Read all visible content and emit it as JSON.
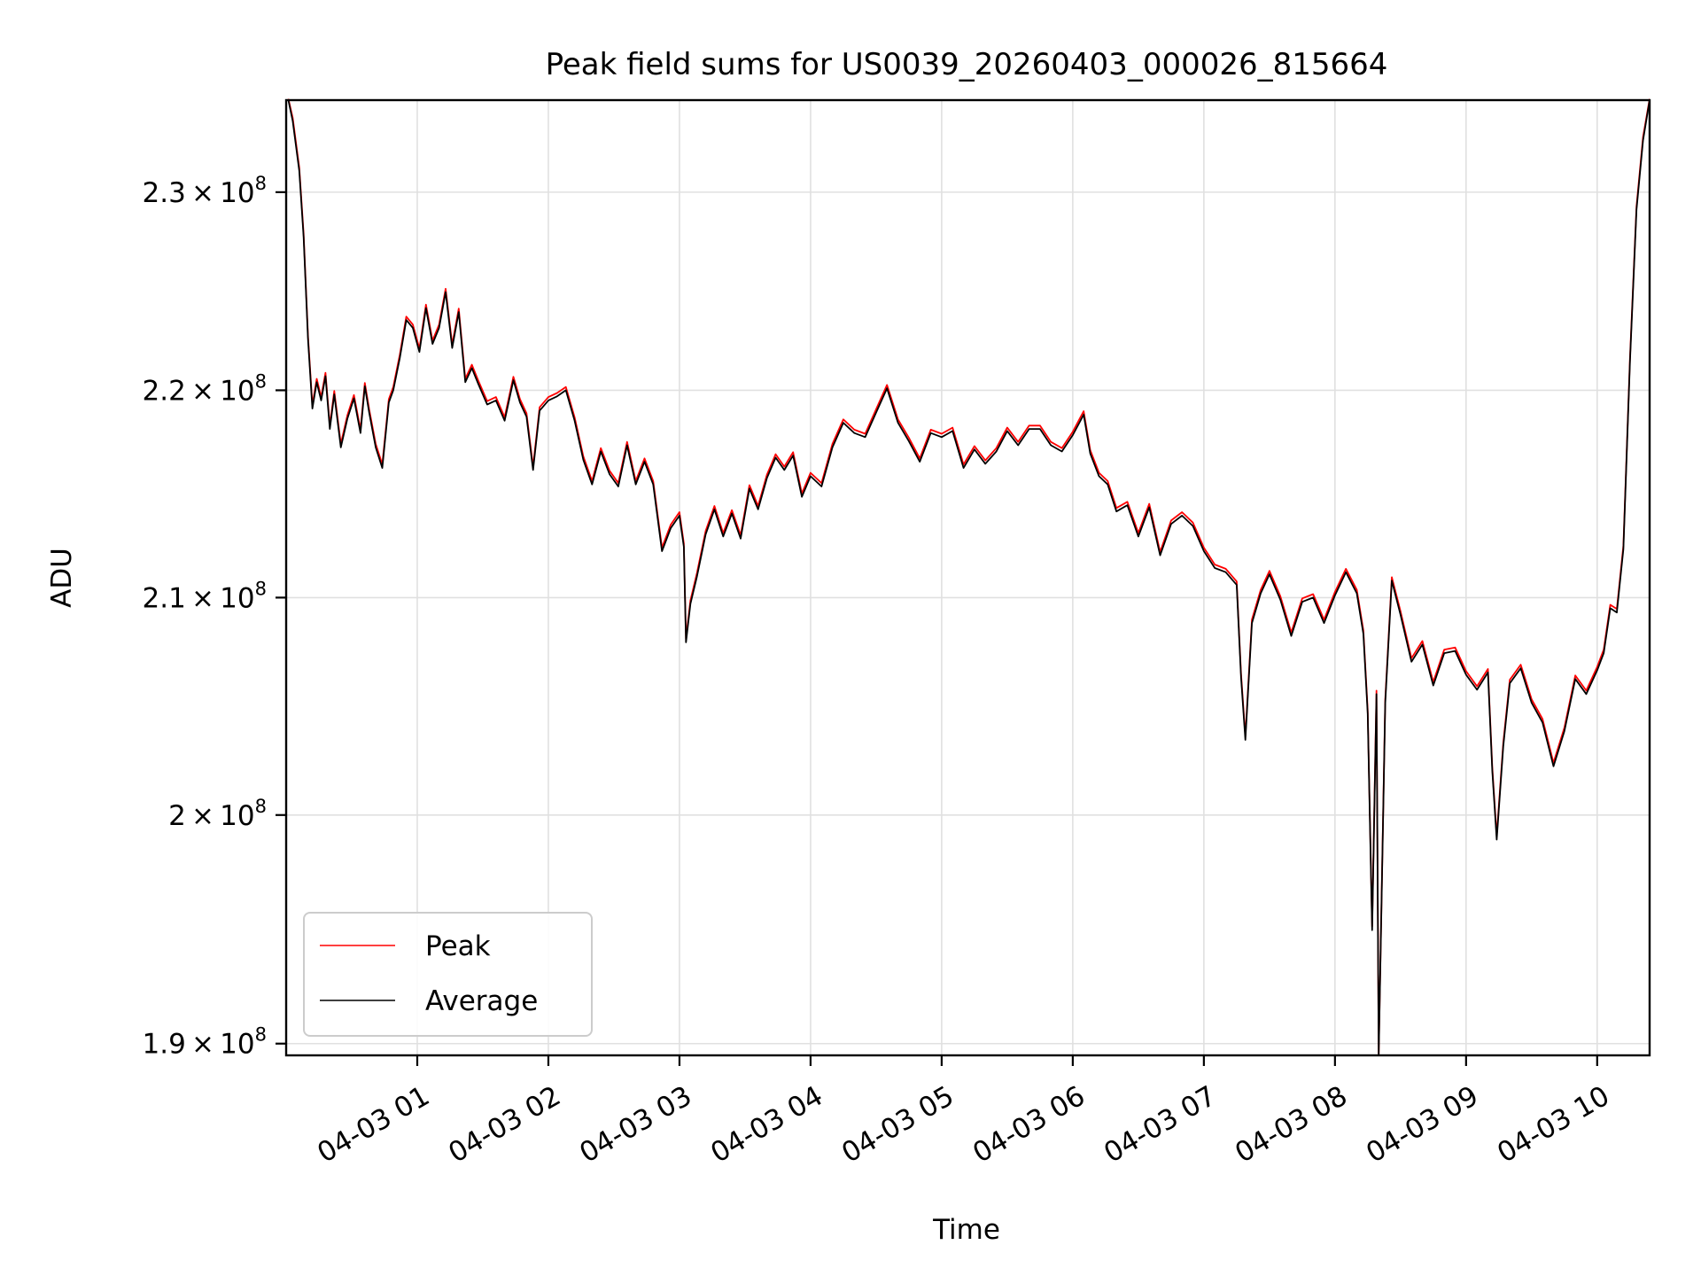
{
  "chart_data": {
    "type": "line",
    "title": "Peak field sums for US0039_20260403_000026_815664",
    "xlabel": "Time",
    "ylabel": "ADU",
    "y_scale": "log",
    "grid": true,
    "legend": {
      "placement": "lower left",
      "entries": [
        "Peak",
        "Average"
      ]
    },
    "xlim": [
      "2026-04-03 00:00",
      "2026-04-03 10:24"
    ],
    "ylim": [
      189500000,
      234800000
    ],
    "x_ticks": [
      "2026-04-03 01:00",
      "2026-04-03 02:00",
      "2026-04-03 03:00",
      "2026-04-03 04:00",
      "2026-04-03 05:00",
      "2026-04-03 06:00",
      "2026-04-03 07:00",
      "2026-04-03 08:00",
      "2026-04-03 09:00",
      "2026-04-03 10:00"
    ],
    "x_tick_labels": [
      "04-03 01",
      "04-03 02",
      "04-03 03",
      "04-03 04",
      "04-03 05",
      "04-03 06",
      "04-03 07",
      "04-03 08",
      "04-03 09",
      "04-03 10"
    ],
    "y_ticks": [
      190000000,
      200000000,
      210000000,
      220000000,
      230000000
    ],
    "y_tick_labels": [
      {
        "mantissa": "1.9",
        "exponent": "8"
      },
      {
        "mantissa": "2",
        "exponent": "8"
      },
      {
        "mantissa": "2.1",
        "exponent": "8"
      },
      {
        "mantissa": "2.2",
        "exponent": "8"
      },
      {
        "mantissa": "2.3",
        "exponent": "8"
      }
    ],
    "series": [
      {
        "name": "Peak",
        "color": "#ff0000",
        "x": [
          "2026-04-03 00:01",
          "2026-04-03 00:03",
          "2026-04-03 00:06",
          "2026-04-03 00:08",
          "2026-04-03 00:10",
          "2026-04-03 00:12",
          "2026-04-03 00:14",
          "2026-04-03 00:16",
          "2026-04-03 00:18",
          "2026-04-03 00:20",
          "2026-04-03 00:22",
          "2026-04-03 00:25",
          "2026-04-03 00:28",
          "2026-04-03 00:31",
          "2026-04-03 00:34",
          "2026-04-03 00:36",
          "2026-04-03 00:38",
          "2026-04-03 00:41",
          "2026-04-03 00:44",
          "2026-04-03 00:47",
          "2026-04-03 00:49",
          "2026-04-03 00:52",
          "2026-04-03 00:55",
          "2026-04-03 00:58",
          "2026-04-03 01:01",
          "2026-04-03 01:04",
          "2026-04-03 01:07",
          "2026-04-03 01:10",
          "2026-04-03 01:13",
          "2026-04-03 01:16",
          "2026-04-03 01:19",
          "2026-04-03 01:22",
          "2026-04-03 01:25",
          "2026-04-03 01:28",
          "2026-04-03 01:32",
          "2026-04-03 01:36",
          "2026-04-03 01:40",
          "2026-04-03 01:44",
          "2026-04-03 01:47",
          "2026-04-03 01:50",
          "2026-04-03 01:53",
          "2026-04-03 01:56",
          "2026-04-03 02:00",
          "2026-04-03 02:04",
          "2026-04-03 02:08",
          "2026-04-03 02:12",
          "2026-04-03 02:16",
          "2026-04-03 02:20",
          "2026-04-03 02:24",
          "2026-04-03 02:28",
          "2026-04-03 02:32",
          "2026-04-03 02:36",
          "2026-04-03 02:40",
          "2026-04-03 02:44",
          "2026-04-03 02:48",
          "2026-04-03 02:52",
          "2026-04-03 02:56",
          "2026-04-03 03:00",
          "2026-04-03 03:02",
          "2026-04-03 03:03",
          "2026-04-03 03:05",
          "2026-04-03 03:08",
          "2026-04-03 03:12",
          "2026-04-03 03:16",
          "2026-04-03 03:20",
          "2026-04-03 03:24",
          "2026-04-03 03:28",
          "2026-04-03 03:32",
          "2026-04-03 03:36",
          "2026-04-03 03:40",
          "2026-04-03 03:44",
          "2026-04-03 03:48",
          "2026-04-03 03:52",
          "2026-04-03 03:56",
          "2026-04-03 04:00",
          "2026-04-03 04:05",
          "2026-04-03 04:10",
          "2026-04-03 04:15",
          "2026-04-03 04:20",
          "2026-04-03 04:25",
          "2026-04-03 04:30",
          "2026-04-03 04:35",
          "2026-04-03 04:40",
          "2026-04-03 04:45",
          "2026-04-03 04:50",
          "2026-04-03 04:55",
          "2026-04-03 05:00",
          "2026-04-03 05:05",
          "2026-04-03 05:10",
          "2026-04-03 05:15",
          "2026-04-03 05:20",
          "2026-04-03 05:25",
          "2026-04-03 05:30",
          "2026-04-03 05:35",
          "2026-04-03 05:40",
          "2026-04-03 05:45",
          "2026-04-03 05:50",
          "2026-04-03 05:55",
          "2026-04-03 06:00",
          "2026-04-03 06:05",
          "2026-04-03 06:08",
          "2026-04-03 06:12",
          "2026-04-03 06:16",
          "2026-04-03 06:20",
          "2026-04-03 06:25",
          "2026-04-03 06:30",
          "2026-04-03 06:35",
          "2026-04-03 06:40",
          "2026-04-03 06:45",
          "2026-04-03 06:50",
          "2026-04-03 06:55",
          "2026-04-03 07:00",
          "2026-04-03 07:05",
          "2026-04-03 07:10",
          "2026-04-03 07:15",
          "2026-04-03 07:17",
          "2026-04-03 07:19",
          "2026-04-03 07:22",
          "2026-04-03 07:26",
          "2026-04-03 07:30",
          "2026-04-03 07:35",
          "2026-04-03 07:40",
          "2026-04-03 07:45",
          "2026-04-03 07:50",
          "2026-04-03 07:55",
          "2026-04-03 08:00",
          "2026-04-03 08:05",
          "2026-04-03 08:10",
          "2026-04-03 08:13",
          "2026-04-03 08:15",
          "2026-04-03 08:17",
          "2026-04-03 08:19",
          "2026-04-03 08:20",
          "2026-04-03 08:23",
          "2026-04-03 08:26",
          "2026-04-03 08:30",
          "2026-04-03 08:35",
          "2026-04-03 08:40",
          "2026-04-03 08:45",
          "2026-04-03 08:50",
          "2026-04-03 08:55",
          "2026-04-03 09:00",
          "2026-04-03 09:05",
          "2026-04-03 09:10",
          "2026-04-03 09:12",
          "2026-04-03 09:14",
          "2026-04-03 09:17",
          "2026-04-03 09:20",
          "2026-04-03 09:25",
          "2026-04-03 09:30",
          "2026-04-03 09:35",
          "2026-04-03 09:40",
          "2026-04-03 09:45",
          "2026-04-03 09:50",
          "2026-04-03 09:55",
          "2026-04-03 10:00",
          "2026-04-03 10:03",
          "2026-04-03 10:06",
          "2026-04-03 10:09",
          "2026-04-03 10:12",
          "2026-04-03 10:15",
          "2026-04-03 10:18",
          "2026-04-03 10:21",
          "2026-04-03 10:24"
        ],
        "values": [
          234800000,
          233800000,
          231200000,
          227800000,
          222600000,
          219200000,
          220500000,
          219600000,
          220800000,
          218200000,
          219900000,
          217300000,
          218700000,
          219700000,
          218000000,
          220300000,
          219000000,
          217300000,
          216300000,
          219500000,
          220100000,
          221700000,
          223600000,
          223200000,
          222000000,
          224200000,
          222400000,
          223200000,
          225000000,
          222200000,
          224000000,
          220500000,
          221200000,
          220400000,
          219400000,
          219600000,
          218600000,
          220600000,
          219500000,
          218800000,
          216200000,
          219100000,
          219600000,
          219800000,
          220100000,
          218600000,
          216700000,
          215500000,
          217100000,
          216000000,
          215400000,
          217400000,
          215500000,
          216600000,
          215500000,
          212300000,
          213400000,
          214000000,
          212500000,
          208000000,
          209800000,
          211100000,
          213100000,
          214300000,
          213000000,
          214100000,
          212900000,
          215300000,
          214300000,
          215800000,
          216800000,
          216200000,
          216900000,
          214900000,
          215900000,
          215400000,
          217300000,
          218500000,
          218000000,
          217800000,
          219000000,
          220200000,
          218500000,
          217600000,
          216600000,
          218000000,
          217800000,
          218100000,
          216300000,
          217200000,
          216500000,
          217100000,
          218100000,
          217400000,
          218200000,
          218200000,
          217400000,
          217100000,
          217900000,
          218900000,
          217000000,
          215900000,
          215500000,
          214200000,
          214500000,
          213000000,
          214400000,
          212100000,
          213600000,
          214000000,
          213500000,
          212300000,
          211500000,
          211300000,
          210700000,
          206400000,
          203500000,
          208900000,
          210300000,
          211200000,
          210000000,
          208300000,
          209900000,
          210100000,
          208900000,
          210200000,
          211300000,
          210300000,
          208400000,
          204700000,
          195000000,
          205600000,
          189500000,
          205200000,
          210900000,
          209300000,
          207100000,
          207900000,
          206000000,
          207500000,
          207600000,
          206500000,
          205800000,
          206600000,
          202100000,
          199000000,
          203200000,
          206100000,
          206800000,
          205200000,
          204300000,
          202300000,
          203900000,
          206300000,
          205600000,
          206700000,
          207500000,
          209600000,
          209400000,
          212400000,
          221500000,
          229200000,
          232800000,
          234800000
        ]
      },
      {
        "name": "Average",
        "color": "#000000",
        "x": [
          "2026-04-03 00:01",
          "2026-04-03 00:03",
          "2026-04-03 00:06",
          "2026-04-03 00:08",
          "2026-04-03 00:10",
          "2026-04-03 00:12",
          "2026-04-03 00:14",
          "2026-04-03 00:16",
          "2026-04-03 00:18",
          "2026-04-03 00:20",
          "2026-04-03 00:22",
          "2026-04-03 00:25",
          "2026-04-03 00:28",
          "2026-04-03 00:31",
          "2026-04-03 00:34",
          "2026-04-03 00:36",
          "2026-04-03 00:38",
          "2026-04-03 00:41",
          "2026-04-03 00:44",
          "2026-04-03 00:47",
          "2026-04-03 00:49",
          "2026-04-03 00:52",
          "2026-04-03 00:55",
          "2026-04-03 00:58",
          "2026-04-03 01:01",
          "2026-04-03 01:04",
          "2026-04-03 01:07",
          "2026-04-03 01:10",
          "2026-04-03 01:13",
          "2026-04-03 01:16",
          "2026-04-03 01:19",
          "2026-04-03 01:22",
          "2026-04-03 01:25",
          "2026-04-03 01:28",
          "2026-04-03 01:32",
          "2026-04-03 01:36",
          "2026-04-03 01:40",
          "2026-04-03 01:44",
          "2026-04-03 01:47",
          "2026-04-03 01:50",
          "2026-04-03 01:53",
          "2026-04-03 01:56",
          "2026-04-03 02:00",
          "2026-04-03 02:04",
          "2026-04-03 02:08",
          "2026-04-03 02:12",
          "2026-04-03 02:16",
          "2026-04-03 02:20",
          "2026-04-03 02:24",
          "2026-04-03 02:28",
          "2026-04-03 02:32",
          "2026-04-03 02:36",
          "2026-04-03 02:40",
          "2026-04-03 02:44",
          "2026-04-03 02:48",
          "2026-04-03 02:52",
          "2026-04-03 02:56",
          "2026-04-03 03:00",
          "2026-04-03 03:02",
          "2026-04-03 03:03",
          "2026-04-03 03:05",
          "2026-04-03 03:08",
          "2026-04-03 03:12",
          "2026-04-03 03:16",
          "2026-04-03 03:20",
          "2026-04-03 03:24",
          "2026-04-03 03:28",
          "2026-04-03 03:32",
          "2026-04-03 03:36",
          "2026-04-03 03:40",
          "2026-04-03 03:44",
          "2026-04-03 03:48",
          "2026-04-03 03:52",
          "2026-04-03 03:56",
          "2026-04-03 04:00",
          "2026-04-03 04:05",
          "2026-04-03 04:10",
          "2026-04-03 04:15",
          "2026-04-03 04:20",
          "2026-04-03 04:25",
          "2026-04-03 04:30",
          "2026-04-03 04:35",
          "2026-04-03 04:40",
          "2026-04-03 04:45",
          "2026-04-03 04:50",
          "2026-04-03 04:55",
          "2026-04-03 05:00",
          "2026-04-03 05:05",
          "2026-04-03 05:10",
          "2026-04-03 05:15",
          "2026-04-03 05:20",
          "2026-04-03 05:25",
          "2026-04-03 05:30",
          "2026-04-03 05:35",
          "2026-04-03 05:40",
          "2026-04-03 05:45",
          "2026-04-03 05:50",
          "2026-04-03 05:55",
          "2026-04-03 06:00",
          "2026-04-03 06:05",
          "2026-04-03 06:08",
          "2026-04-03 06:12",
          "2026-04-03 06:16",
          "2026-04-03 06:20",
          "2026-04-03 06:25",
          "2026-04-03 06:30",
          "2026-04-03 06:35",
          "2026-04-03 06:40",
          "2026-04-03 06:45",
          "2026-04-03 06:50",
          "2026-04-03 06:55",
          "2026-04-03 07:00",
          "2026-04-03 07:05",
          "2026-04-03 07:10",
          "2026-04-03 07:15",
          "2026-04-03 07:17",
          "2026-04-03 07:19",
          "2026-04-03 07:22",
          "2026-04-03 07:26",
          "2026-04-03 07:30",
          "2026-04-03 07:35",
          "2026-04-03 07:40",
          "2026-04-03 07:45",
          "2026-04-03 07:50",
          "2026-04-03 07:55",
          "2026-04-03 08:00",
          "2026-04-03 08:05",
          "2026-04-03 08:10",
          "2026-04-03 08:13",
          "2026-04-03 08:15",
          "2026-04-03 08:17",
          "2026-04-03 08:19",
          "2026-04-03 08:20",
          "2026-04-03 08:23",
          "2026-04-03 08:26",
          "2026-04-03 08:30",
          "2026-04-03 08:35",
          "2026-04-03 08:40",
          "2026-04-03 08:45",
          "2026-04-03 08:50",
          "2026-04-03 08:55",
          "2026-04-03 09:00",
          "2026-04-03 09:05",
          "2026-04-03 09:10",
          "2026-04-03 09:12",
          "2026-04-03 09:14",
          "2026-04-03 09:17",
          "2026-04-03 09:20",
          "2026-04-03 09:25",
          "2026-04-03 09:30",
          "2026-04-03 09:35",
          "2026-04-03 09:40",
          "2026-04-03 09:45",
          "2026-04-03 09:50",
          "2026-04-03 09:55",
          "2026-04-03 10:00",
          "2026-04-03 10:03",
          "2026-04-03 10:06",
          "2026-04-03 10:09",
          "2026-04-03 10:12",
          "2026-04-03 10:15",
          "2026-04-03 10:18",
          "2026-04-03 10:21",
          "2026-04-03 10:24"
        ],
        "values": [
          234800000,
          233700000,
          231100000,
          227700000,
          222500000,
          219100000,
          220400000,
          219500000,
          220700000,
          218100000,
          219800000,
          217200000,
          218600000,
          219600000,
          217900000,
          220200000,
          218900000,
          217200000,
          216200000,
          219400000,
          220000000,
          221600000,
          223500000,
          223100000,
          221900000,
          224100000,
          222300000,
          223100000,
          224900000,
          222100000,
          223900000,
          220400000,
          221100000,
          220300000,
          219300000,
          219500000,
          218500000,
          220500000,
          219400000,
          218700000,
          216100000,
          219000000,
          219500000,
          219700000,
          220000000,
          218500000,
          216600000,
          215400000,
          217000000,
          215900000,
          215300000,
          217300000,
          215400000,
          216500000,
          215400000,
          212200000,
          213300000,
          213900000,
          212400000,
          207900000,
          209700000,
          211000000,
          213000000,
          214200000,
          212900000,
          214000000,
          212800000,
          215200000,
          214200000,
          215700000,
          216700000,
          216100000,
          216800000,
          214800000,
          215800000,
          215300000,
          217200000,
          218400000,
          217900000,
          217700000,
          218900000,
          220100000,
          218400000,
          217500000,
          216500000,
          217900000,
          217700000,
          218000000,
          216200000,
          217100000,
          216400000,
          217000000,
          218000000,
          217300000,
          218100000,
          218100000,
          217300000,
          217000000,
          217800000,
          218800000,
          216900000,
          215800000,
          215400000,
          214100000,
          214400000,
          212900000,
          214300000,
          212000000,
          213500000,
          213900000,
          213400000,
          212200000,
          211400000,
          211200000,
          210600000,
          206300000,
          203400000,
          208800000,
          210200000,
          211100000,
          209900000,
          208200000,
          209800000,
          210000000,
          208800000,
          210100000,
          211200000,
          210200000,
          208300000,
          204600000,
          194900000,
          205500000,
          189500000,
          205100000,
          210800000,
          209200000,
          207000000,
          207800000,
          205900000,
          207400000,
          207500000,
          206400000,
          205700000,
          206500000,
          202000000,
          198900000,
          203100000,
          206000000,
          206700000,
          205100000,
          204200000,
          202200000,
          203800000,
          206200000,
          205500000,
          206600000,
          207400000,
          209500000,
          209300000,
          212300000,
          221400000,
          229100000,
          232700000,
          234800000
        ]
      }
    ]
  }
}
